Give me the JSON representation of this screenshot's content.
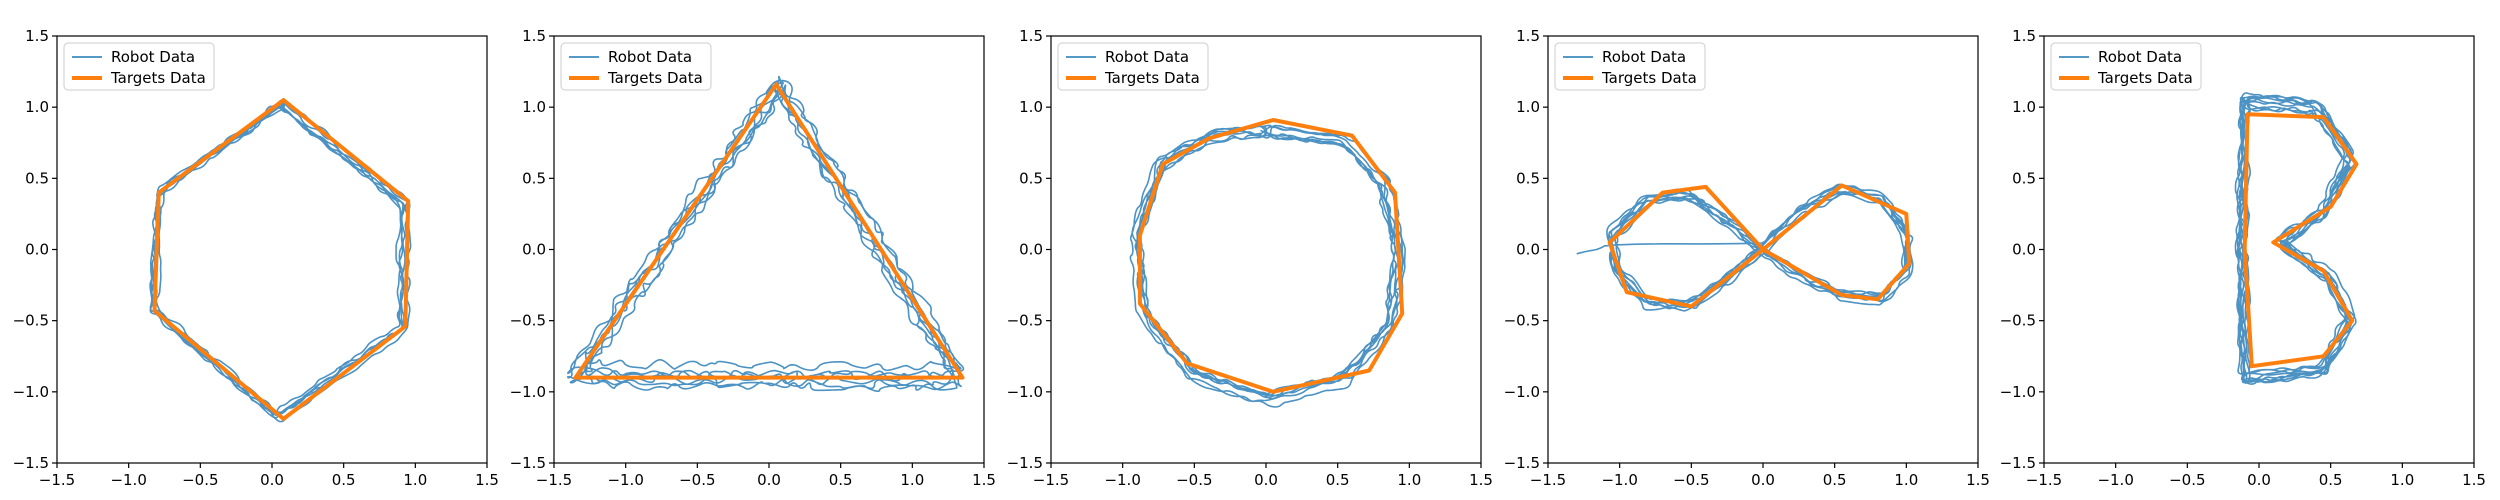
{
  "colors": {
    "robot": "#1f77b4",
    "targets": "#ff7f0e",
    "axes": "#000000",
    "background": "#ffffff",
    "legend_border": "#cccccc"
  },
  "chart_data": [
    {
      "type": "line",
      "panel": 1,
      "shape": "hexagon",
      "xlim": [
        -1.5,
        1.5
      ],
      "ylim": [
        -1.5,
        1.5
      ],
      "xticks": [
        "−1.5",
        "−1.0",
        "−0.5",
        "0.0",
        "0.5",
        "1.0",
        "1.5"
      ],
      "yticks": [
        "−1.5",
        "−1.0",
        "−0.5",
        "0.0",
        "0.5",
        "1.0",
        "1.5"
      ],
      "grid": false,
      "legend_position": "top-left",
      "series": [
        {
          "name": "Robot Data",
          "role": "robot",
          "loops": 6,
          "noise": 0.045,
          "seed": 11,
          "path": [
            [
              0.08,
              1.03
            ],
            [
              0.93,
              0.34
            ],
            [
              0.93,
              -0.54
            ],
            [
              0.05,
              -1.17
            ],
            [
              -0.82,
              -0.42
            ],
            [
              -0.78,
              0.41
            ],
            [
              0.08,
              1.03
            ]
          ]
        },
        {
          "name": "Targets Data",
          "role": "targets",
          "points": [
            [
              0.08,
              1.05
            ],
            [
              0.95,
              0.34
            ],
            [
              0.93,
              -0.54
            ],
            [
              0.08,
              -1.19
            ],
            [
              -0.82,
              -0.43
            ],
            [
              -0.79,
              0.4
            ],
            [
              0.08,
              1.05
            ]
          ]
        }
      ]
    },
    {
      "type": "line",
      "panel": 2,
      "shape": "triangle",
      "xlim": [
        -1.5,
        1.5
      ],
      "ylim": [
        -1.5,
        1.5
      ],
      "xticks": [
        "−1.5",
        "−1.0",
        "−0.5",
        "0.0",
        "0.5",
        "1.0",
        "1.5"
      ],
      "yticks": [
        "−1.5",
        "−1.0",
        "−0.5",
        "0.0",
        "0.5",
        "1.0",
        "1.5"
      ],
      "grid": false,
      "legend_position": "top-left",
      "series": [
        {
          "name": "Robot Data",
          "role": "robot",
          "loops": 6,
          "noise": 0.09,
          "seed": 23,
          "path": [
            [
              0.05,
              1.15
            ],
            [
              1.32,
              -0.9
            ],
            [
              -1.38,
              -0.88
            ],
            [
              0.05,
              1.15
            ]
          ]
        },
        {
          "name": "Targets Data",
          "role": "targets",
          "points": [
            [
              0.05,
              1.16
            ],
            [
              1.35,
              -0.9
            ],
            [
              -1.35,
              -0.9
            ],
            [
              0.05,
              1.16
            ]
          ]
        }
      ]
    },
    {
      "type": "line",
      "panel": 3,
      "shape": "circle",
      "xlim": [
        -1.5,
        1.5
      ],
      "ylim": [
        -1.5,
        1.5
      ],
      "xticks": [
        "−1.5",
        "−1.0",
        "−0.5",
        "0.0",
        "0.5",
        "1.0",
        "1.5"
      ],
      "yticks": [
        "−1.5",
        "−1.0",
        "−0.5",
        "0.0",
        "0.5",
        "1.0",
        "1.5"
      ],
      "grid": false,
      "legend_position": "top-left",
      "series": [
        {
          "name": "Robot Data",
          "role": "robot",
          "loops": 7,
          "noise": 0.05,
          "seed": 37,
          "path": [
            [
              0.0,
              0.82
            ],
            [
              0.55,
              0.75
            ],
            [
              0.82,
              0.45
            ],
            [
              0.92,
              -0.05
            ],
            [
              0.86,
              -0.52
            ],
            [
              0.55,
              -0.9
            ],
            [
              0.0,
              -1.05
            ],
            [
              -0.5,
              -0.88
            ],
            [
              -0.85,
              -0.45
            ],
            [
              -0.9,
              0.1
            ],
            [
              -0.72,
              0.6
            ],
            [
              -0.35,
              0.8
            ],
            [
              0.0,
              0.82
            ]
          ]
        },
        {
          "name": "Targets Data",
          "role": "targets",
          "points": [
            [
              0.05,
              0.91
            ],
            [
              0.6,
              0.8
            ],
            [
              0.9,
              0.4
            ],
            [
              0.95,
              -0.45
            ],
            [
              0.72,
              -0.85
            ],
            [
              0.05,
              -1.0
            ],
            [
              -0.55,
              -0.8
            ],
            [
              -0.88,
              -0.38
            ],
            [
              -0.88,
              0.1
            ],
            [
              -0.72,
              0.6
            ],
            [
              -0.4,
              0.78
            ],
            [
              0.05,
              0.91
            ]
          ]
        }
      ]
    },
    {
      "type": "line",
      "panel": 4,
      "shape": "infinity",
      "xlim": [
        -1.5,
        1.5
      ],
      "ylim": [
        -1.5,
        1.5
      ],
      "xticks": [
        "−1.5",
        "−1.0",
        "−0.5",
        "0.0",
        "0.5",
        "1.0",
        "1.5"
      ],
      "yticks": [
        "−1.5",
        "−1.0",
        "−0.5",
        "0.0",
        "0.5",
        "1.0",
        "1.5"
      ],
      "grid": false,
      "legend_position": "top-left",
      "series": [
        {
          "name": "Robot Data",
          "role": "robot",
          "loops": 7,
          "noise": 0.04,
          "seed": 41,
          "path": [
            [
              0.0,
              0.0
            ],
            [
              0.25,
              0.25
            ],
            [
              0.55,
              0.42
            ],
            [
              0.85,
              0.35
            ],
            [
              1.02,
              0.1
            ],
            [
              1.02,
              -0.15
            ],
            [
              0.85,
              -0.35
            ],
            [
              0.55,
              -0.32
            ],
            [
              0.25,
              -0.18
            ],
            [
              0.0,
              0.0
            ],
            [
              -0.25,
              0.2
            ],
            [
              -0.5,
              0.38
            ],
            [
              -0.8,
              0.35
            ],
            [
              -1.05,
              0.1
            ],
            [
              -1.02,
              -0.15
            ],
            [
              -0.8,
              -0.38
            ],
            [
              -0.5,
              -0.4
            ],
            [
              -0.25,
              -0.22
            ],
            [
              0.0,
              0.0
            ]
          ],
          "lead_in": [
            [
              -1.3,
              -0.03
            ],
            [
              -1.22,
              -0.01
            ],
            [
              -1.15,
              0.0
            ],
            [
              -1.08,
              0.04
            ]
          ]
        },
        {
          "name": "Targets Data",
          "role": "targets",
          "points": [
            [
              0.0,
              0.0
            ],
            [
              0.55,
              0.45
            ],
            [
              1.0,
              0.25
            ],
            [
              1.02,
              -0.1
            ],
            [
              0.8,
              -0.35
            ],
            [
              0.55,
              -0.32
            ],
            [
              0.0,
              0.0
            ],
            [
              -0.4,
              0.44
            ],
            [
              -0.7,
              0.4
            ],
            [
              -1.07,
              0.05
            ],
            [
              -0.95,
              -0.3
            ],
            [
              -0.5,
              -0.4
            ],
            [
              0.0,
              0.0
            ]
          ]
        }
      ]
    },
    {
      "type": "line",
      "panel": 5,
      "shape": "letter-B",
      "xlim": [
        -1.5,
        1.5
      ],
      "ylim": [
        -1.5,
        1.5
      ],
      "xticks": [
        "−1.5",
        "−1.0",
        "−0.5",
        "0.0",
        "0.5",
        "1.0",
        "1.5"
      ],
      "yticks": [
        "−1.5",
        "−1.0",
        "−0.5",
        "0.0",
        "0.5",
        "1.0",
        "1.5"
      ],
      "grid": false,
      "legend_position": "top-left",
      "series": [
        {
          "name": "Robot Data",
          "role": "robot",
          "loops": 9,
          "noise": 0.05,
          "seed": 53,
          "path": [
            [
              -0.1,
              1.05
            ],
            [
              0.4,
              1.02
            ],
            [
              0.65,
              0.65
            ],
            [
              0.45,
              0.25
            ],
            [
              0.15,
              0.05
            ],
            [
              0.5,
              -0.2
            ],
            [
              0.65,
              -0.5
            ],
            [
              0.45,
              -0.85
            ],
            [
              -0.1,
              -0.92
            ],
            [
              -0.12,
              0.0
            ],
            [
              -0.1,
              1.05
            ]
          ]
        },
        {
          "name": "Targets Data",
          "role": "targets",
          "points": [
            [
              -0.08,
              0.95
            ],
            [
              0.45,
              0.93
            ],
            [
              0.68,
              0.6
            ],
            [
              0.5,
              0.3
            ],
            [
              0.1,
              0.05
            ],
            [
              0.45,
              -0.15
            ],
            [
              0.65,
              -0.5
            ],
            [
              0.45,
              -0.75
            ],
            [
              -0.05,
              -0.82
            ],
            [
              -0.1,
              0.0
            ],
            [
              -0.08,
              0.95
            ]
          ]
        }
      ]
    }
  ]
}
